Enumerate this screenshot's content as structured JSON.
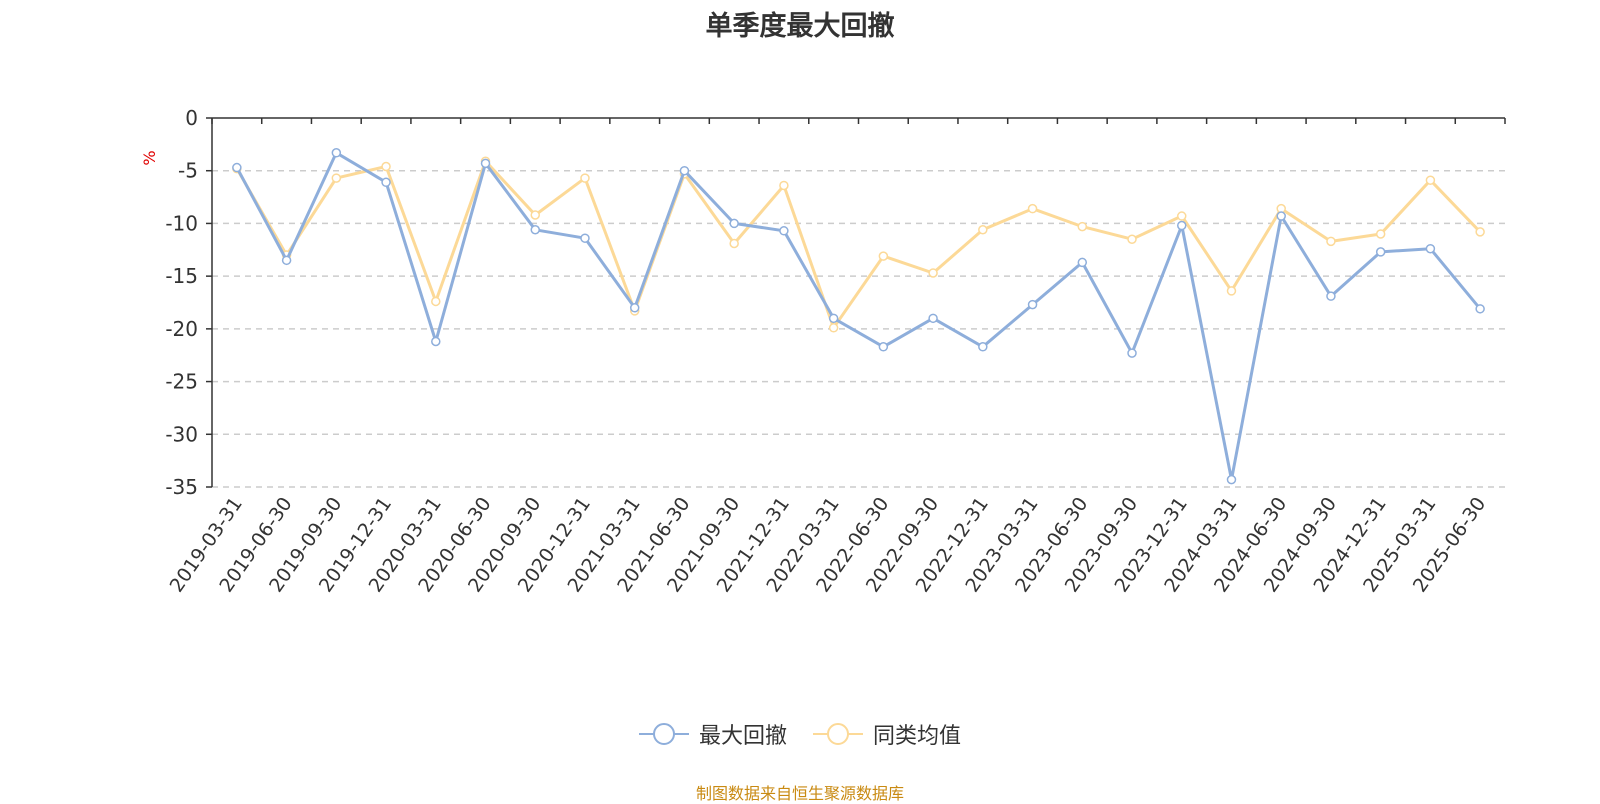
{
  "chart_data": {
    "type": "line",
    "title": "单季度最大回撤",
    "ylabel": "%",
    "ylim": [
      -35,
      0
    ],
    "yticks": [
      0,
      -5,
      -10,
      -15,
      -20,
      -25,
      -30,
      -35
    ],
    "grid": true,
    "legend_position": "bottom-center",
    "categories": [
      "2019-03-31",
      "2019-06-30",
      "2019-09-30",
      "2019-12-31",
      "2020-03-31",
      "2020-06-30",
      "2020-09-30",
      "2020-12-31",
      "2021-03-31",
      "2021-06-30",
      "2021-09-30",
      "2021-12-31",
      "2022-03-31",
      "2022-06-30",
      "2022-09-30",
      "2022-12-31",
      "2023-03-31",
      "2023-06-30",
      "2023-09-30",
      "2023-12-31",
      "2024-03-31",
      "2024-06-30",
      "2024-09-30",
      "2024-12-31",
      "2025-03-31",
      "2025-06-30"
    ],
    "series": [
      {
        "name": "最大回撤",
        "color": "#8eaedb",
        "values": [
          -4.7,
          -13.5,
          -3.3,
          -6.1,
          -21.2,
          -4.3,
          -10.6,
          -11.4,
          -18.0,
          -5.0,
          -10.0,
          -10.7,
          -19.0,
          -21.7,
          -19.0,
          -21.7,
          -17.7,
          -13.7,
          -22.3,
          -10.2,
          -34.3,
          -9.3,
          -16.9,
          -12.7,
          -12.4,
          -18.1
        ]
      },
      {
        "name": "同类均值",
        "color": "#fcd997",
        "values": [
          -4.8,
          -13.0,
          -5.7,
          -4.6,
          -17.4,
          -4.1,
          -9.2,
          -5.7,
          -18.3,
          -5.3,
          -11.9,
          -6.4,
          -19.9,
          -13.1,
          -14.7,
          -10.6,
          -8.6,
          -10.3,
          -11.5,
          -9.3,
          -16.4,
          -8.6,
          -11.7,
          -11.0,
          -5.9,
          -10.8
        ]
      }
    ]
  },
  "footer": {
    "source": "制图数据来自恒生聚源数据库"
  }
}
